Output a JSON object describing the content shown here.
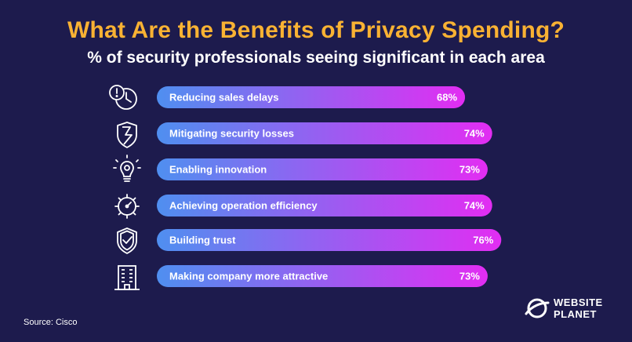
{
  "title": "What Are the Benefits of Privacy Spending?",
  "subtitle": "% of security professionals seeing significant in each area",
  "source": "Source: Cisco",
  "brand": {
    "line1": "WEBSITE",
    "line2": "PLANET"
  },
  "colors": {
    "background": "#1d1b4d",
    "title": "#f9b233",
    "bar_start": "#4f8ff0",
    "bar_end": "#e22df2",
    "icon_stroke": "#ffffff"
  },
  "icons": [
    "clock-alert-icon",
    "broken-shield-icon",
    "lightbulb-gear-icon",
    "gear-gauge-icon",
    "shield-check-icon",
    "office-building-icon"
  ],
  "chart_data": {
    "type": "bar",
    "orientation": "horizontal",
    "categories": [
      "Reducing sales delays",
      "Mitigating security losses",
      "Enabling innovation",
      "Achieving operation efficiency",
      "Building trust",
      "Making company more attractive"
    ],
    "values": [
      68,
      74,
      73,
      74,
      76,
      73
    ],
    "value_labels": [
      "68%",
      "74%",
      "73%",
      "74%",
      "76%",
      "73%"
    ],
    "unit": "%"
  }
}
